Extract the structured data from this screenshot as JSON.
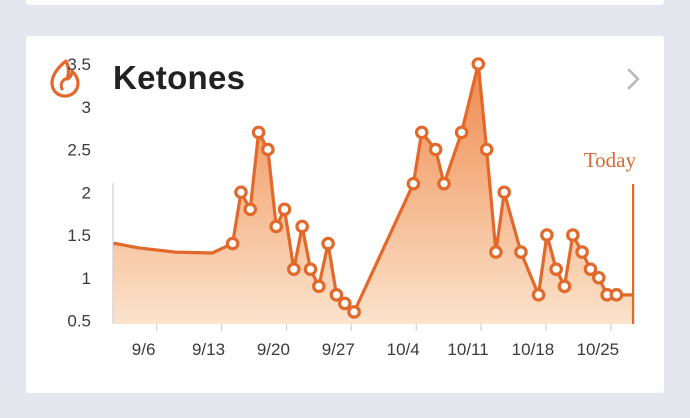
{
  "card": {
    "title": "Ketones",
    "icon": "flame-icon",
    "chevron_icon": "chevron-right-icon",
    "today_label": "Today"
  },
  "colors": {
    "accent": "#e2692b",
    "fill_top": "#ef8a4c",
    "fill_bottom": "#fbe3cc",
    "title": "#222226",
    "chevron": "#b8b8c0"
  },
  "chart_data": {
    "type": "area",
    "title": "",
    "xlabel": "",
    "ylabel": "",
    "ylim": [
      0.5,
      3.5
    ],
    "y_ticks": [
      "3.5",
      "3",
      "2.5",
      "2",
      "1.5",
      "1",
      "0.5"
    ],
    "x_ticks": [
      {
        "label": "9/6",
        "day": 6
      },
      {
        "label": "9/13",
        "day": 13
      },
      {
        "label": "9/20",
        "day": 20
      },
      {
        "label": "9/27",
        "day": 27
      },
      {
        "label": "10/4",
        "day": 34
      },
      {
        "label": "10/11",
        "day": 41
      },
      {
        "label": "10/18",
        "day": 48
      },
      {
        "label": "10/25",
        "day": 55
      }
    ],
    "baseline_line": [
      {
        "day": 1.6,
        "value": 1.4
      },
      {
        "day": 4,
        "value": 1.35
      },
      {
        "day": 8,
        "value": 1.3
      },
      {
        "day": 12,
        "value": 1.29
      },
      {
        "day": 14.2,
        "value": 1.4
      }
    ],
    "points": [
      {
        "day": 14.2,
        "value": 1.4
      },
      {
        "day": 15.1,
        "value": 2.0
      },
      {
        "day": 16.1,
        "value": 1.8
      },
      {
        "day": 17.0,
        "value": 2.7
      },
      {
        "day": 18.0,
        "value": 2.5
      },
      {
        "day": 18.9,
        "value": 1.6
      },
      {
        "day": 19.8,
        "value": 1.8
      },
      {
        "day": 20.8,
        "value": 1.1
      },
      {
        "day": 21.7,
        "value": 1.6
      },
      {
        "day": 22.6,
        "value": 1.1
      },
      {
        "day": 23.5,
        "value": 0.9
      },
      {
        "day": 24.5,
        "value": 1.4
      },
      {
        "day": 25.4,
        "value": 0.8
      },
      {
        "day": 26.3,
        "value": 0.7
      },
      {
        "day": 27.3,
        "value": 0.6
      },
      {
        "day": 33.7,
        "value": 2.1
      },
      {
        "day": 34.6,
        "value": 2.7
      },
      {
        "day": 36.1,
        "value": 2.5
      },
      {
        "day": 37.0,
        "value": 2.1
      },
      {
        "day": 38.9,
        "value": 2.7
      },
      {
        "day": 40.7,
        "value": 3.5
      },
      {
        "day": 41.6,
        "value": 2.5
      },
      {
        "day": 42.6,
        "value": 1.3
      },
      {
        "day": 43.5,
        "value": 2.0
      },
      {
        "day": 45.3,
        "value": 1.3
      },
      {
        "day": 47.2,
        "value": 0.8
      },
      {
        "day": 48.1,
        "value": 1.5
      },
      {
        "day": 49.1,
        "value": 1.1
      },
      {
        "day": 50.0,
        "value": 0.9
      },
      {
        "day": 50.9,
        "value": 1.5
      },
      {
        "day": 51.9,
        "value": 1.3
      },
      {
        "day": 52.8,
        "value": 1.1
      },
      {
        "day": 53.7,
        "value": 1.0
      },
      {
        "day": 54.6,
        "value": 0.8
      },
      {
        "day": 55.6,
        "value": 0.8
      }
    ],
    "end_value": 0.8,
    "today_day": 57.4,
    "grid": false,
    "legend": "none"
  }
}
